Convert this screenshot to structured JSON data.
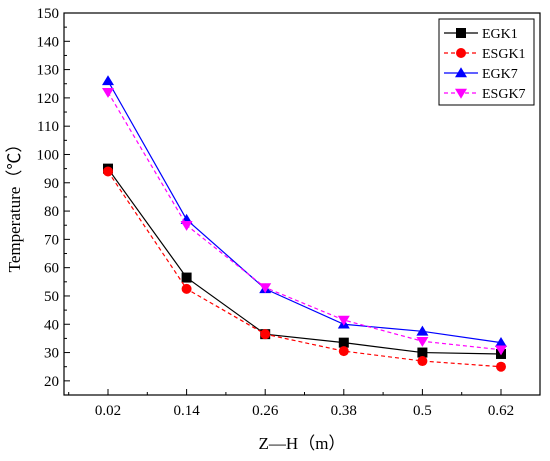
{
  "chart_data": {
    "type": "line",
    "xlabel": "Z—H（m）",
    "ylabel": "Temperature（℃）",
    "categories": [
      "0.02",
      "0.14",
      "0.26",
      "0.38",
      "0.5",
      "0.62"
    ],
    "x": [
      0.02,
      0.14,
      0.26,
      0.38,
      0.5,
      0.62
    ],
    "ylim": [
      15,
      150
    ],
    "yticks": [
      20,
      30,
      40,
      50,
      60,
      70,
      80,
      90,
      100,
      110,
      120,
      130,
      140,
      150
    ],
    "grid": false,
    "legend_position": "top-right",
    "series": [
      {
        "name": "EGK1",
        "color": "#000000",
        "line": "solid",
        "marker": "square",
        "values": [
          95,
          56.5,
          36.5,
          33.5,
          30,
          29.5
        ]
      },
      {
        "name": "ESGK1",
        "color": "#ff0000",
        "line": "dashed",
        "marker": "circle",
        "values": [
          94,
          52.5,
          36.5,
          30.5,
          27,
          25
        ]
      },
      {
        "name": "EGK7",
        "color": "#0000ff",
        "line": "solid",
        "marker": "triangle-up",
        "values": [
          126,
          77,
          52.5,
          40,
          37.5,
          33.5
        ]
      },
      {
        "name": "ESGK7",
        "color": "#ff00ff",
        "line": "dashed",
        "marker": "triangle-down",
        "values": [
          122,
          75,
          53,
          41.5,
          34,
          31
        ]
      }
    ]
  }
}
